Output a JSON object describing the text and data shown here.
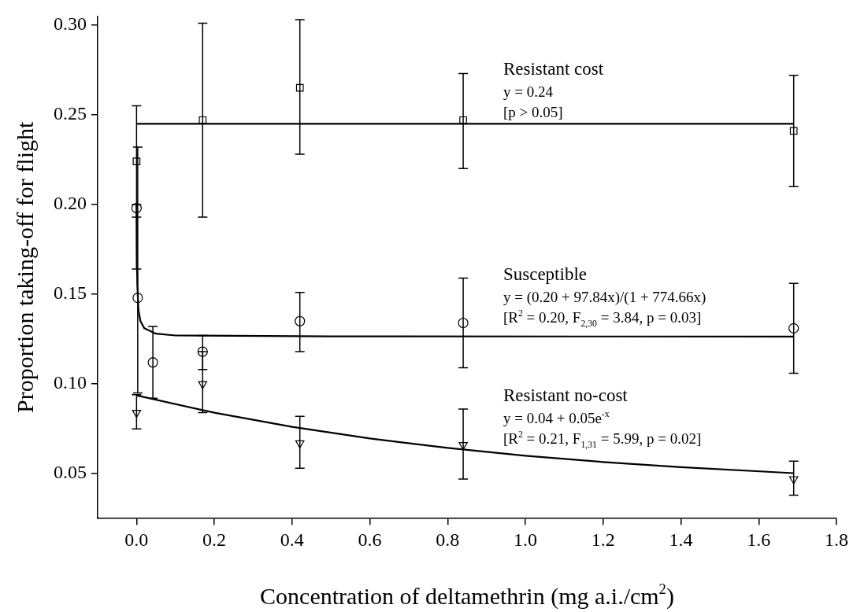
{
  "chart_data": {
    "type": "scatter",
    "xlabel": "Concentration of deltamethrin (mg a.i./cm$^{2}$)",
    "ylabel": "Proportion taking-off for flight",
    "xlim": [
      -0.1,
      1.8
    ],
    "xticks": [
      {
        "value": 0,
        "label": "0.0"
      },
      0.2,
      0.4,
      0.6,
      0.8,
      {
        "value": 1,
        "label": "1.0"
      },
      1.2,
      1.4,
      1.6,
      1.8
    ],
    "ylim": [
      0.025,
      0.305
    ],
    "yticks": [
      0.05,
      {
        "value": 0.1,
        "label": "0.10"
      },
      0.15,
      {
        "value": 0.2,
        "label": "0.20"
      },
      0.25,
      {
        "value": 0.3,
        "label": "0.30"
      }
    ],
    "grid": false,
    "legend": false,
    "series": [
      {
        "name": "Resistant cost",
        "marker": "square",
        "color": "#000000",
        "x": [
          0,
          0.17,
          0.42,
          0.84,
          1.69
        ],
        "values": [
          0.224,
          0.247,
          0.265,
          0.247,
          0.241
        ],
        "errors": [
          [
            0.193,
            0.255
          ],
          [
            0.193,
            0.301
          ],
          [
            0.228,
            0.303
          ],
          [
            0.22,
            0.273
          ],
          [
            0.21,
            0.272
          ]
        ]
      },
      {
        "name": "Susceptible",
        "marker": "circle",
        "color": "#000000",
        "x": [
          0,
          0.003,
          0.042,
          0.17,
          0.42,
          0.84,
          1.69
        ],
        "values": [
          0.198,
          0.148,
          0.112,
          0.118,
          0.135,
          0.134,
          0.131
        ],
        "errors": [
          [
            0.164,
            0.2
          ],
          [
            0.095,
            0.232
          ],
          [
            0.092,
            0.132
          ],
          [
            0.108,
            0.127
          ],
          [
            0.118,
            0.151
          ],
          [
            0.109,
            0.159
          ],
          [
            0.106,
            0.156
          ]
        ]
      },
      {
        "name": "Resistant no-cost",
        "marker": "triangle",
        "color": "#000000",
        "x": [
          0,
          0.17,
          0.42,
          0.84,
          1.69
        ],
        "values": [
          0.084,
          0.1,
          0.067,
          0.066,
          0.047
        ],
        "errors": [
          [
            0.075,
            0.094
          ],
          [
            0.084,
            0.118
          ],
          [
            0.053,
            0.082
          ],
          [
            0.047,
            0.086
          ],
          [
            0.038,
            0.057
          ]
        ]
      },
      {
        "type": "line",
        "marker": "none",
        "color": "#000000",
        "x": [
          0,
          1.69
        ],
        "values": [
          0.245,
          0.245
        ]
      },
      {
        "type": "line",
        "marker": "none",
        "color": "#000000",
        "x": [
          0,
          0.001,
          0.002,
          0.005,
          0.01,
          0.02,
          0.05,
          0.1,
          0.5,
          1.69
        ],
        "values": [
          0.2,
          0.168,
          0.155,
          0.141,
          0.135,
          0.131,
          0.128,
          0.127,
          0.1265,
          0.1264
        ]
      },
      {
        "type": "line",
        "marker": "none",
        "color": "#000000",
        "x": [
          0,
          0.2,
          0.4,
          0.6,
          0.8,
          1.0,
          1.2,
          1.4,
          1.69
        ],
        "values": [
          0.0936,
          0.084,
          0.0761,
          0.0696,
          0.0644,
          0.06,
          0.0565,
          0.0536,
          0.0503
        ]
      }
    ],
    "annotations": [
      "y = 0.24",
      "[p > 0.05]",
      "y = (0.20 + 97.84x)/(1 + 774.66x)",
      "[R$^{2}$ = 0.20, F$_{2,30}$ = 3.84, p = 0.03]",
      "y = 0.04 + 0.05e$^{-x}$",
      "[R$^{2}$ = 0.21, F$_{1,31}$ = 5.99, p = 0.02]"
    ]
  }
}
